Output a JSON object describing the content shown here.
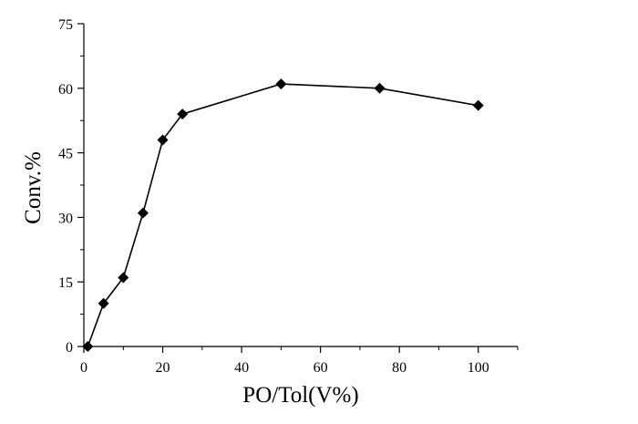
{
  "chart_data": {
    "type": "line",
    "title": "",
    "xlabel": "PO/Tol(V%)",
    "ylabel": "Conv.%",
    "xlim": [
      0,
      110
    ],
    "ylim": [
      0,
      75
    ],
    "xticks": [
      0,
      20,
      40,
      60,
      80,
      100
    ],
    "yticks": [
      0,
      15,
      30,
      45,
      60,
      75
    ],
    "grid": false,
    "marker": "diamond",
    "series": [
      {
        "x": [
          1,
          5,
          10,
          15,
          20,
          25,
          50,
          75,
          100
        ],
        "y": [
          0,
          10,
          16,
          31,
          48,
          54,
          61,
          60,
          56
        ],
        "color": "#000000"
      }
    ]
  }
}
